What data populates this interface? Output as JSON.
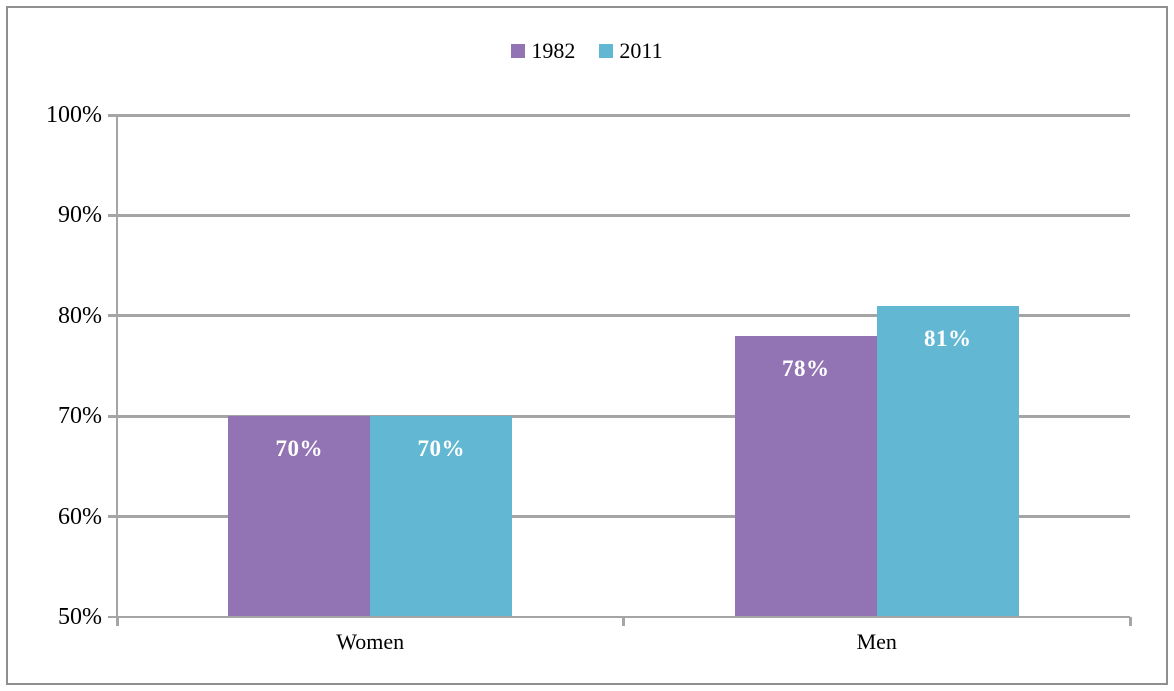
{
  "chart_data": {
    "type": "bar",
    "title": "",
    "xlabel": "",
    "ylabel": "",
    "categories": [
      "Women",
      "Men"
    ],
    "series": [
      {
        "name": "1982",
        "color": "#9273b4",
        "values": [
          70,
          78
        ],
        "labels": [
          "70%",
          "78%"
        ]
      },
      {
        "name": "2011",
        "color": "#62b8d2",
        "values": [
          70,
          81
        ],
        "labels": [
          "70%",
          "81%"
        ]
      }
    ],
    "ylim": [
      50,
      100
    ],
    "yticks": [
      50,
      60,
      70,
      80,
      90,
      100
    ],
    "ytick_labels": [
      "50%",
      "60%",
      "70%",
      "80%",
      "90%",
      "100%"
    ],
    "grid": true,
    "legend_position": "top center",
    "bar_labels_inside": true
  },
  "colors": {
    "background": "#ffffff",
    "border": "#8f8f8f",
    "gridline": "#a5a5a5",
    "axis": "#a5a5a5",
    "tick": "#a5a5a5",
    "bar_label_text": "#ffffff",
    "text": "#000000"
  }
}
